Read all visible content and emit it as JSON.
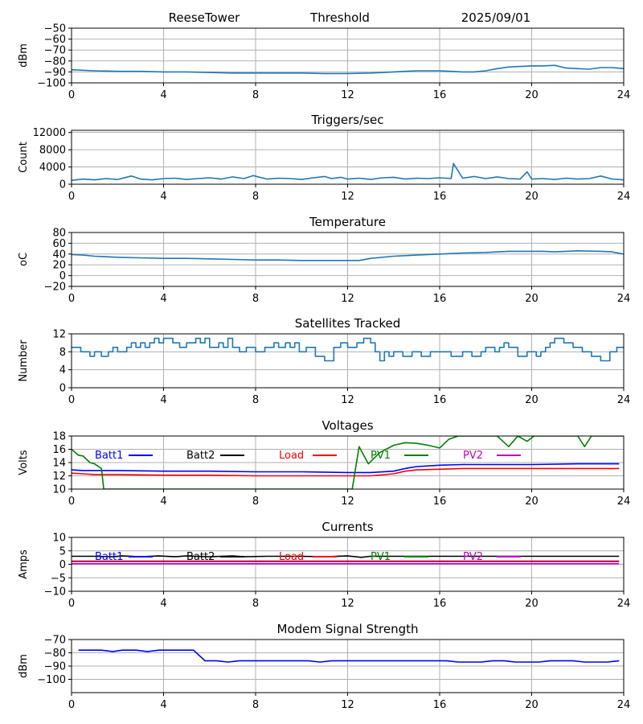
{
  "header": {
    "station": "ReeseTower",
    "title": "Threshold",
    "date": "2025/09/01"
  },
  "colors": {
    "series_default": "#1f77b4",
    "batt1": "#0000ff",
    "batt2": "#000000",
    "load": "#ff0000",
    "pv1": "#008000",
    "pv2": "#bf00bf",
    "grid": "#b0b0b0"
  },
  "chart_data": [
    {
      "type": "line",
      "title": "",
      "xlabel": "",
      "ylabel": "dBm",
      "xlim": [
        0,
        24
      ],
      "ylim": [
        -100,
        -50
      ],
      "xticks": [
        0,
        4,
        8,
        12,
        16,
        20,
        24
      ],
      "yticks": [
        -100,
        -90,
        -80,
        -70,
        -60,
        -50
      ],
      "grid": true,
      "series": [
        {
          "color": "#1f77b4",
          "x": [
            0,
            1,
            2,
            3,
            4,
            5,
            6,
            7,
            8,
            9,
            10,
            11,
            12,
            13,
            14,
            15,
            16,
            16.5,
            17,
            17.5,
            18,
            18.5,
            19,
            19.5,
            20,
            20.5,
            21,
            21.5,
            22,
            22.5,
            23,
            23.5,
            24
          ],
          "y": [
            -88,
            -89,
            -89.5,
            -89.5,
            -90,
            -90,
            -90.5,
            -91,
            -91,
            -91,
            -91,
            -91.5,
            -91.5,
            -91,
            -90,
            -89,
            -89,
            -89.5,
            -90,
            -90,
            -89,
            -87,
            -85.5,
            -85,
            -84.5,
            -84.5,
            -84,
            -86.5,
            -87,
            -87.5,
            -86,
            -86,
            -87
          ]
        }
      ]
    },
    {
      "type": "line",
      "title": "Triggers/sec",
      "xlabel": "",
      "ylabel": "Count",
      "xlim": [
        0,
        24
      ],
      "ylim": [
        0,
        12500
      ],
      "xticks": [
        0,
        4,
        8,
        12,
        16,
        20,
        24
      ],
      "yticks": [
        0,
        4000,
        8000,
        12000
      ],
      "grid": true,
      "series": [
        {
          "color": "#1f77b4",
          "x": [
            0,
            0.5,
            1,
            1.5,
            2,
            2.6,
            3,
            3.5,
            4,
            4.5,
            5,
            5.5,
            6,
            6.5,
            7,
            7.5,
            7.9,
            8.5,
            9,
            9.5,
            10,
            10.5,
            11,
            11.3,
            11.7,
            12,
            12.5,
            13,
            13.5,
            14,
            14.5,
            15,
            15.5,
            16,
            16.5,
            16.6,
            17,
            17.5,
            18,
            18.5,
            19,
            19.5,
            19.8,
            20,
            20.5,
            21,
            21.5,
            22,
            22.5,
            23,
            23.5,
            24
          ],
          "y": [
            900,
            1200,
            1000,
            1300,
            1100,
            1900,
            1200,
            1000,
            1300,
            1400,
            1100,
            1300,
            1500,
            1200,
            1700,
            1300,
            2000,
            1200,
            1400,
            1300,
            1100,
            1500,
            1800,
            1300,
            1600,
            1200,
            1400,
            1100,
            1500,
            1600,
            1200,
            1400,
            1300,
            1500,
            1300,
            4800,
            1400,
            1800,
            1300,
            1700,
            1300,
            1200,
            2900,
            1200,
            1300,
            1100,
            1400,
            1200,
            1300,
            1900,
            1200,
            1000
          ]
        }
      ]
    },
    {
      "type": "line",
      "title": "Temperature",
      "xlabel": "",
      "ylabel": "oC",
      "xlim": [
        0,
        24
      ],
      "ylim": [
        -20,
        80
      ],
      "xticks": [
        0,
        4,
        8,
        12,
        16,
        20,
        24
      ],
      "yticks": [
        -20,
        0,
        20,
        40,
        60,
        80
      ],
      "grid": true,
      "series": [
        {
          "color": "#1f77b4",
          "x": [
            0,
            0.5,
            1,
            2,
            3,
            4,
            5,
            6,
            7,
            8,
            9,
            10,
            11,
            12,
            12.5,
            13,
            14,
            15,
            16,
            17,
            18,
            19,
            20,
            20.5,
            21,
            22,
            23,
            23.5,
            24
          ],
          "y": [
            39,
            38,
            36,
            34,
            33,
            32,
            32,
            31,
            30,
            29,
            29,
            28,
            28,
            28,
            28,
            32,
            36,
            38,
            40,
            42,
            43,
            45,
            45,
            45,
            44,
            46,
            45,
            44,
            40
          ]
        }
      ]
    },
    {
      "type": "line",
      "title": "Satellites Tracked",
      "xlabel": "",
      "ylabel": "Number",
      "xlim": [
        0,
        24
      ],
      "ylim": [
        0,
        12
      ],
      "xticks": [
        0,
        4,
        8,
        12,
        16,
        20,
        24
      ],
      "yticks": [
        0,
        4,
        8,
        12
      ],
      "grid": true,
      "step": true,
      "series": [
        {
          "color": "#1f77b4",
          "x": [
            0,
            0.4,
            0.8,
            1,
            1.3,
            1.6,
            1.8,
            2,
            2.4,
            2.6,
            2.8,
            3,
            3.2,
            3.4,
            3.6,
            3.8,
            4,
            4.4,
            4.7,
            5,
            5.4,
            5.6,
            5.8,
            6,
            6.4,
            6.6,
            6.8,
            7,
            7.3,
            7.6,
            8,
            8.4,
            8.8,
            9,
            9.3,
            9.5,
            9.7,
            9.9,
            10.2,
            10.6,
            11,
            11.4,
            11.7,
            12,
            12.4,
            12.7,
            13,
            13.2,
            13.4,
            13.6,
            13.8,
            14,
            14.4,
            14.8,
            15.2,
            15.6,
            16,
            16.5,
            17,
            17.4,
            17.8,
            18,
            18.4,
            18.6,
            18.8,
            19,
            19.4,
            19.8,
            20.2,
            20.4,
            20.6,
            20.8,
            21,
            21.4,
            21.8,
            22.2,
            22.6,
            23,
            23.4,
            23.7,
            24
          ],
          "y": [
            9,
            8,
            7,
            8,
            7,
            8,
            9,
            8,
            9,
            10,
            9,
            10,
            9,
            10,
            11,
            10,
            11,
            10,
            9,
            10,
            11,
            10,
            11,
            9,
            10,
            9,
            11,
            9,
            8,
            9,
            8,
            9,
            10,
            9,
            10,
            9,
            10,
            8,
            9,
            7,
            6,
            9,
            10,
            9,
            10,
            11,
            10,
            8,
            6,
            8,
            7,
            8,
            7,
            8,
            7,
            8,
            8,
            7,
            8,
            7,
            8,
            9,
            8,
            9,
            10,
            9,
            7,
            8,
            7,
            8,
            9,
            10,
            11,
            10,
            9,
            8,
            7,
            6,
            8,
            9,
            9
          ]
        }
      ]
    },
    {
      "type": "line",
      "title": "Voltages",
      "xlabel": "",
      "ylabel": "Volts",
      "xlim": [
        0,
        24
      ],
      "ylim": [
        10,
        18
      ],
      "xticks": [
        0,
        4,
        8,
        12,
        16,
        20,
        24
      ],
      "yticks": [
        10,
        12,
        14,
        16,
        18
      ],
      "grid": true,
      "legend": "top",
      "series": [
        {
          "name": "Batt1",
          "color": "#0000ff",
          "x": [
            0,
            0.5,
            1,
            2,
            4,
            6,
            8,
            10,
            12,
            13,
            14,
            14.5,
            15,
            16,
            17,
            18,
            20,
            22,
            23.8
          ],
          "y": [
            12.9,
            12.8,
            12.8,
            12.8,
            12.7,
            12.7,
            12.6,
            12.6,
            12.5,
            12.5,
            12.7,
            13.1,
            13.4,
            13.6,
            13.7,
            13.7,
            13.7,
            13.8,
            13.8
          ]
        },
        {
          "name": "Batt2",
          "color": "#000000",
          "x": [],
          "y": []
        },
        {
          "name": "Load",
          "color": "#ff0000",
          "x": [
            0,
            0.5,
            1,
            2,
            4,
            6,
            8,
            10,
            12,
            13,
            14,
            14.5,
            15,
            16,
            17,
            18,
            20,
            22,
            23.8
          ],
          "y": [
            12.4,
            12.3,
            12.2,
            12.2,
            12.1,
            12.1,
            12.0,
            12.0,
            12.0,
            12.0,
            12.3,
            12.7,
            12.9,
            13.0,
            13.1,
            13.1,
            13.1,
            13.1,
            13.1
          ]
        },
        {
          "name": "PV1",
          "color": "#008000",
          "x": [
            0,
            0.3,
            0.5,
            0.8,
            1.0,
            1.3,
            1.4,
            12.2,
            12.5,
            12.9,
            13.4,
            14.0,
            14.5,
            15.0,
            15.5,
            16.0,
            16.4,
            16.8,
            18.5,
            19.0,
            19.4,
            19.8,
            20.1,
            20.4,
            22.0,
            22.3,
            22.6,
            24
          ],
          "y": [
            16.0,
            15.1,
            15.0,
            14.0,
            13.8,
            13.1,
            10.0,
            10.0,
            16.4,
            13.8,
            15.5,
            16.6,
            17.0,
            16.9,
            16.6,
            16.2,
            17.5,
            18.0,
            18.0,
            16.4,
            18.0,
            17.2,
            18.0,
            18.0,
            18.0,
            16.4,
            18.0,
            18.0
          ]
        },
        {
          "name": "PV2",
          "color": "#bf00bf",
          "x": [],
          "y": []
        }
      ]
    },
    {
      "type": "line",
      "title": "Currents",
      "xlabel": "",
      "ylabel": "Amps",
      "xlim": [
        0,
        24
      ],
      "ylim": [
        -10,
        10
      ],
      "xticks": [
        0,
        4,
        8,
        12,
        16,
        20,
        24
      ],
      "yticks": [
        -10,
        -5,
        0,
        5,
        10
      ],
      "grid": true,
      "legend": "top",
      "series": [
        {
          "name": "Batt1",
          "color": "#0000ff",
          "x": [
            0,
            6,
            12,
            18,
            23.8
          ],
          "y": [
            1.2,
            1.2,
            1.2,
            1.2,
            1.2
          ]
        },
        {
          "name": "Batt2",
          "color": "#000000",
          "x": [
            0,
            1,
            1.8,
            2.2,
            3,
            3.8,
            4.5,
            5,
            6,
            7,
            7.5,
            8.5,
            9,
            10,
            11,
            12,
            12.6,
            13,
            14,
            16,
            18,
            20,
            22,
            23.8
          ],
          "y": [
            3.0,
            3.0,
            2.8,
            3.1,
            2.8,
            3.1,
            2.8,
            3.1,
            2.8,
            3.1,
            2.8,
            3.0,
            3.0,
            3.0,
            2.8,
            3.1,
            2.6,
            3.0,
            3.0,
            3.0,
            3.0,
            3.0,
            3.0,
            3.0
          ]
        },
        {
          "name": "Load",
          "color": "#ff0000",
          "x": [
            0,
            6,
            12,
            18,
            23.8
          ],
          "y": [
            1.0,
            1.0,
            1.0,
            1.0,
            1.0
          ]
        },
        {
          "name": "PV1",
          "color": "#008000",
          "x": [],
          "y": []
        },
        {
          "name": "PV2",
          "color": "#bf00bf",
          "x": [
            0,
            6,
            12,
            18,
            23.8
          ],
          "y": [
            0.2,
            0.2,
            0.2,
            0.2,
            0.2
          ]
        }
      ]
    },
    {
      "type": "line",
      "title": "Modem Signal Strength",
      "xlabel": "",
      "ylabel": "dBm",
      "xlim": [
        0,
        24
      ],
      "ylim": [
        -110,
        -70
      ],
      "xticks": [
        0,
        4,
        8,
        12,
        16,
        20,
        24
      ],
      "yticks": [
        -100,
        -90,
        -80,
        -70
      ],
      "grid": true,
      "series": [
        {
          "color": "#0000ff",
          "x": [
            0.3,
            0.8,
            1.3,
            1.8,
            2.2,
            2.8,
            3.3,
            3.8,
            4.3,
            4.8,
            5.3,
            5.8,
            6.3,
            6.8,
            7.3,
            7.8,
            8.3,
            8.8,
            9.3,
            9.8,
            10.3,
            10.8,
            11.3,
            11.8,
            12.3,
            12.8,
            13.3,
            13.8,
            14.3,
            14.8,
            15.3,
            15.8,
            16.3,
            16.8,
            17.3,
            17.8,
            18.3,
            18.8,
            19.3,
            19.8,
            20.3,
            20.8,
            21.3,
            21.8,
            22.3,
            22.8,
            23.3,
            23.8
          ],
          "y": [
            -78,
            -78,
            -78,
            -79,
            -78,
            -78,
            -79,
            -78,
            -78,
            -78,
            -78,
            -86,
            -86,
            -87,
            -86,
            -86,
            -86,
            -86,
            -86,
            -86,
            -86,
            -87,
            -86,
            -86,
            -86,
            -86,
            -86,
            -86,
            -86,
            -86,
            -86,
            -86,
            -86,
            -87,
            -87,
            -87,
            -86,
            -86,
            -87,
            -87,
            -87,
            -86,
            -86,
            -86,
            -87,
            -87,
            -87,
            -86
          ]
        }
      ]
    }
  ]
}
